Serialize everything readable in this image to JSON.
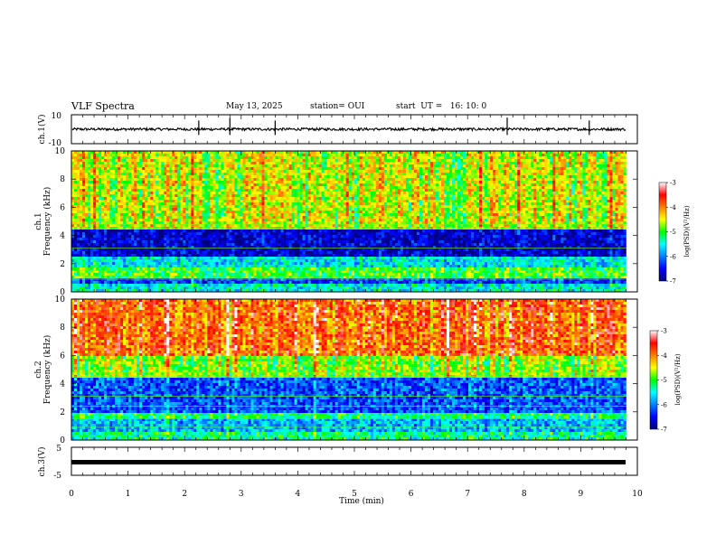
{
  "header": {
    "title": "VLF Spectra",
    "date": "May 13, 2025",
    "station": "station= OUI",
    "start": "start  UT =   16: 10: 0"
  },
  "chart_data": [
    {
      "type": "line",
      "panel": "ch1-waveform",
      "ylabel": "ch.1(V)",
      "ylim": [
        -10,
        10
      ],
      "yticks": [
        "10",
        "-10"
      ],
      "xlim": [
        0,
        10
      ],
      "series": [
        {
          "values_description_baseline": 0
        }
      ],
      "approx_baseline_v": 0,
      "spikes_min": [
        2.25,
        2.8,
        3.6,
        7.7,
        9.15
      ]
    },
    {
      "type": "heatmap",
      "panel": "ch1-spectrogram",
      "ylabel": "ch.1\nFrequency (kHz)",
      "ylim": [
        0,
        10
      ],
      "yticks": [
        "0",
        "2",
        "4",
        "6",
        "8",
        "10"
      ],
      "xlim": [
        0,
        9.8
      ],
      "colorbar": {
        "range": [
          -7,
          -3
        ],
        "ticks": [
          "-3",
          "-4",
          "-5",
          "-6",
          "-7"
        ],
        "label": "log(PSD)(V²/Hz)"
      },
      "bands_khz": [
        {
          "range": [
            0,
            0.5
          ],
          "level": -5.5
        },
        {
          "range": [
            0.5,
            1.0
          ],
          "level": -6.3
        },
        {
          "range": [
            1.0,
            1.8
          ],
          "level": -5.0
        },
        {
          "range": [
            1.8,
            2.5
          ],
          "level": -5.6
        },
        {
          "range": [
            2.5,
            4.5
          ],
          "level": -6.7
        },
        {
          "range": [
            4.5,
            10
          ],
          "level": -4.6
        }
      ]
    },
    {
      "type": "heatmap",
      "panel": "ch2-spectrogram",
      "ylabel": "ch.2\nFrequency (kHz)",
      "ylim": [
        0,
        10
      ],
      "yticks": [
        "0",
        "2",
        "4",
        "6",
        "8",
        "10"
      ],
      "xlim": [
        0,
        9.8
      ],
      "colorbar": {
        "range": [
          -7,
          -3
        ],
        "ticks": [
          "-3",
          "-4",
          "-5",
          "-6",
          "-7"
        ],
        "label": "log(PSD)(V²/Hz)"
      },
      "bands_khz": [
        {
          "range": [
            0,
            0.5
          ],
          "level": -5.3
        },
        {
          "range": [
            0.5,
            1.5
          ],
          "level": -5.8
        },
        {
          "range": [
            1.5,
            2.0
          ],
          "level": -5.2
        },
        {
          "range": [
            2.0,
            4.5
          ],
          "level": -6.2
        },
        {
          "range": [
            4.5,
            6.0
          ],
          "level": -4.8
        },
        {
          "range": [
            6.0,
            10
          ],
          "level": -3.9
        }
      ]
    },
    {
      "type": "line",
      "panel": "ch3-waveform",
      "ylabel": "ch.3(V)",
      "ylim": [
        -5,
        5
      ],
      "yticks": [
        "5",
        "-5"
      ],
      "xlim": [
        0,
        10
      ],
      "approx_level_v": 0
    }
  ],
  "xaxis": {
    "label": "Time (min)",
    "ticks": [
      "0",
      "1",
      "2",
      "3",
      "4",
      "5",
      "6",
      "7",
      "8",
      "9",
      "10"
    ],
    "range": [
      0,
      10
    ]
  }
}
